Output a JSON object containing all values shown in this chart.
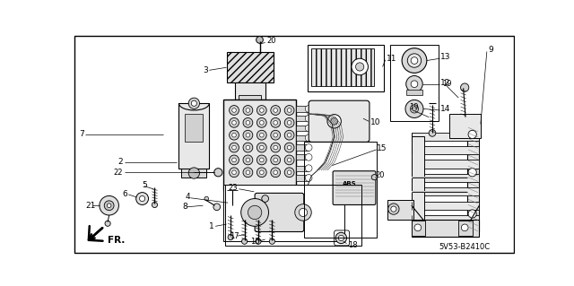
{
  "bg_color": "#ffffff",
  "part_number": "5V53-B2410C",
  "figsize": [
    6.4,
    3.19
  ],
  "dpi": 100
}
